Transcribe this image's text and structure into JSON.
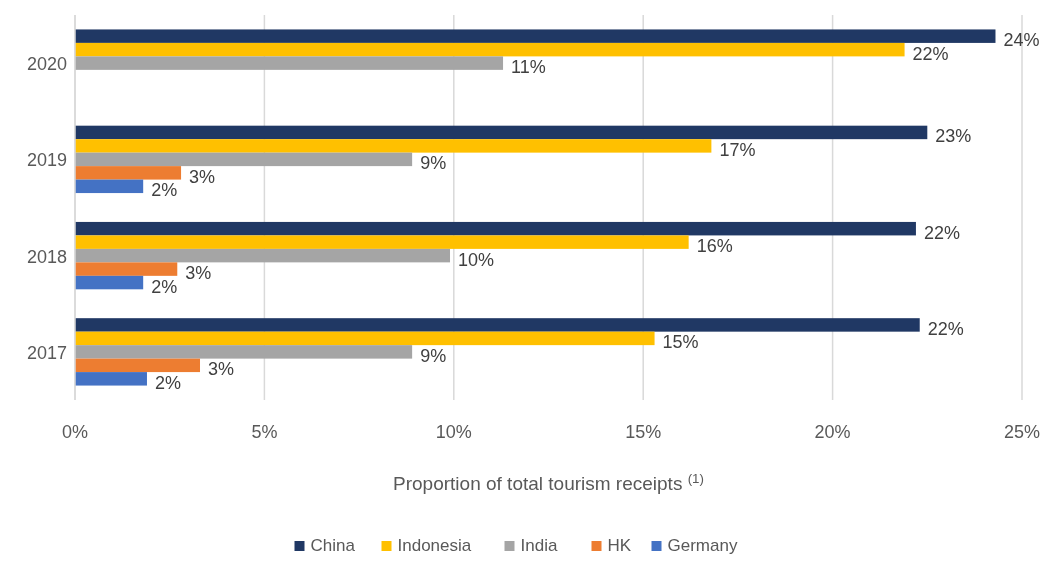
{
  "chart_data": {
    "type": "bar",
    "orientation": "horizontal",
    "xlabel": "Proportion of total tourism receipts $^{(1)}$",
    "categories": [
      "2020",
      "2019",
      "2018",
      "2017"
    ],
    "series": [
      {
        "name": "China",
        "color": "#203864",
        "values": [
          24.3,
          22.5,
          22.2,
          22.3
        ],
        "value_labels": [
          "24%",
          "23%",
          "22%",
          "22%"
        ]
      },
      {
        "name": "Indonesia",
        "color": "#ffc000",
        "values": [
          21.9,
          16.8,
          16.2,
          15.3
        ],
        "value_labels": [
          "22%",
          "17%",
          "16%",
          "15%"
        ]
      },
      {
        "name": "India",
        "color": "#a5a5a5",
        "values": [
          11.3,
          8.9,
          9.9,
          8.9
        ],
        "value_labels": [
          "11%",
          "9%",
          "10%",
          "9%"
        ]
      },
      {
        "name": "HK",
        "color": "#ed7d31",
        "values": [
          null,
          2.8,
          2.7,
          3.3
        ],
        "value_labels": [
          null,
          "3%",
          "3%",
          "3%"
        ]
      },
      {
        "name": "Germany",
        "color": "#4472c4",
        "values": [
          null,
          1.8,
          1.8,
          1.9
        ],
        "value_labels": [
          null,
          "2%",
          "2%",
          "2%"
        ]
      }
    ],
    "xlim": [
      0,
      25
    ],
    "xticks": [
      {
        "value": 0,
        "label": "0%"
      },
      {
        "value": 5,
        "label": "5%"
      },
      {
        "value": 10,
        "label": "10%"
      },
      {
        "value": 15,
        "label": "15%"
      },
      {
        "value": 20,
        "label": "20%"
      },
      {
        "value": 25,
        "label": "25%"
      }
    ],
    "grid": "x",
    "legend": "bottom"
  }
}
